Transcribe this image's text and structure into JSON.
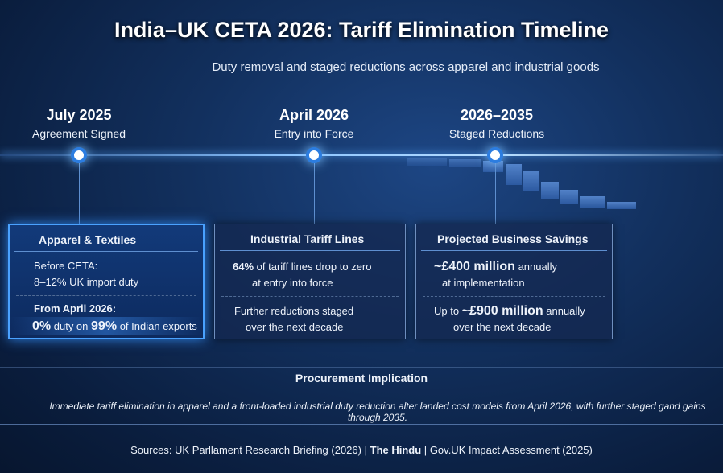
{
  "title": "India–UK CETA 2026: Tariff Elimination Timeline",
  "subtitle": "Duty removal and staged reductions across apparel and industrial goods",
  "milestones": [
    {
      "date": "July 2025",
      "desc": "Agreement Signed"
    },
    {
      "date": "April 2026",
      "desc": "Entry into Force"
    },
    {
      "date": "2026–2035",
      "desc": "Staged Reductions"
    }
  ],
  "cards": {
    "apparel": {
      "title": "Apparel & Textiles",
      "before_label": "Before CETA:",
      "before_value": "8–12% UK import duty",
      "after_label": "From April 2026:",
      "zero": "0%",
      "duty_on": "duty on",
      "pct": "99%",
      "of_exports": "of Indian exports"
    },
    "industrial": {
      "title": "Industrial Tariff Lines",
      "pct": "64%",
      "line1": "of tariff lines drop to zero",
      "line2": "at entry into force",
      "line3": "Further reductions staged",
      "line4": "over the next decade"
    },
    "savings": {
      "title": "Projected Business Savings",
      "v1": "~£400 million",
      "v1_suffix": "annually",
      "v1_note": "at implementation",
      "v2_prefix": "Up to",
      "v2": "~£900 million",
      "v2_suffix": "annually",
      "v2_note": "over the next decade"
    }
  },
  "procurement": {
    "heading": "Procurement Implication",
    "text": "Immediate tariff elimination in apparel and a front-loaded industrial duty reduction alter landed cost models from April 2026, with further staged gand gains through 2035."
  },
  "sources": {
    "s1": "Sources: UK Parllament Research Briefing (2026)",
    "s2": "The Hindu",
    "s3": "Gov.UK Impact Assessment (2025)",
    "sep": "|"
  }
}
